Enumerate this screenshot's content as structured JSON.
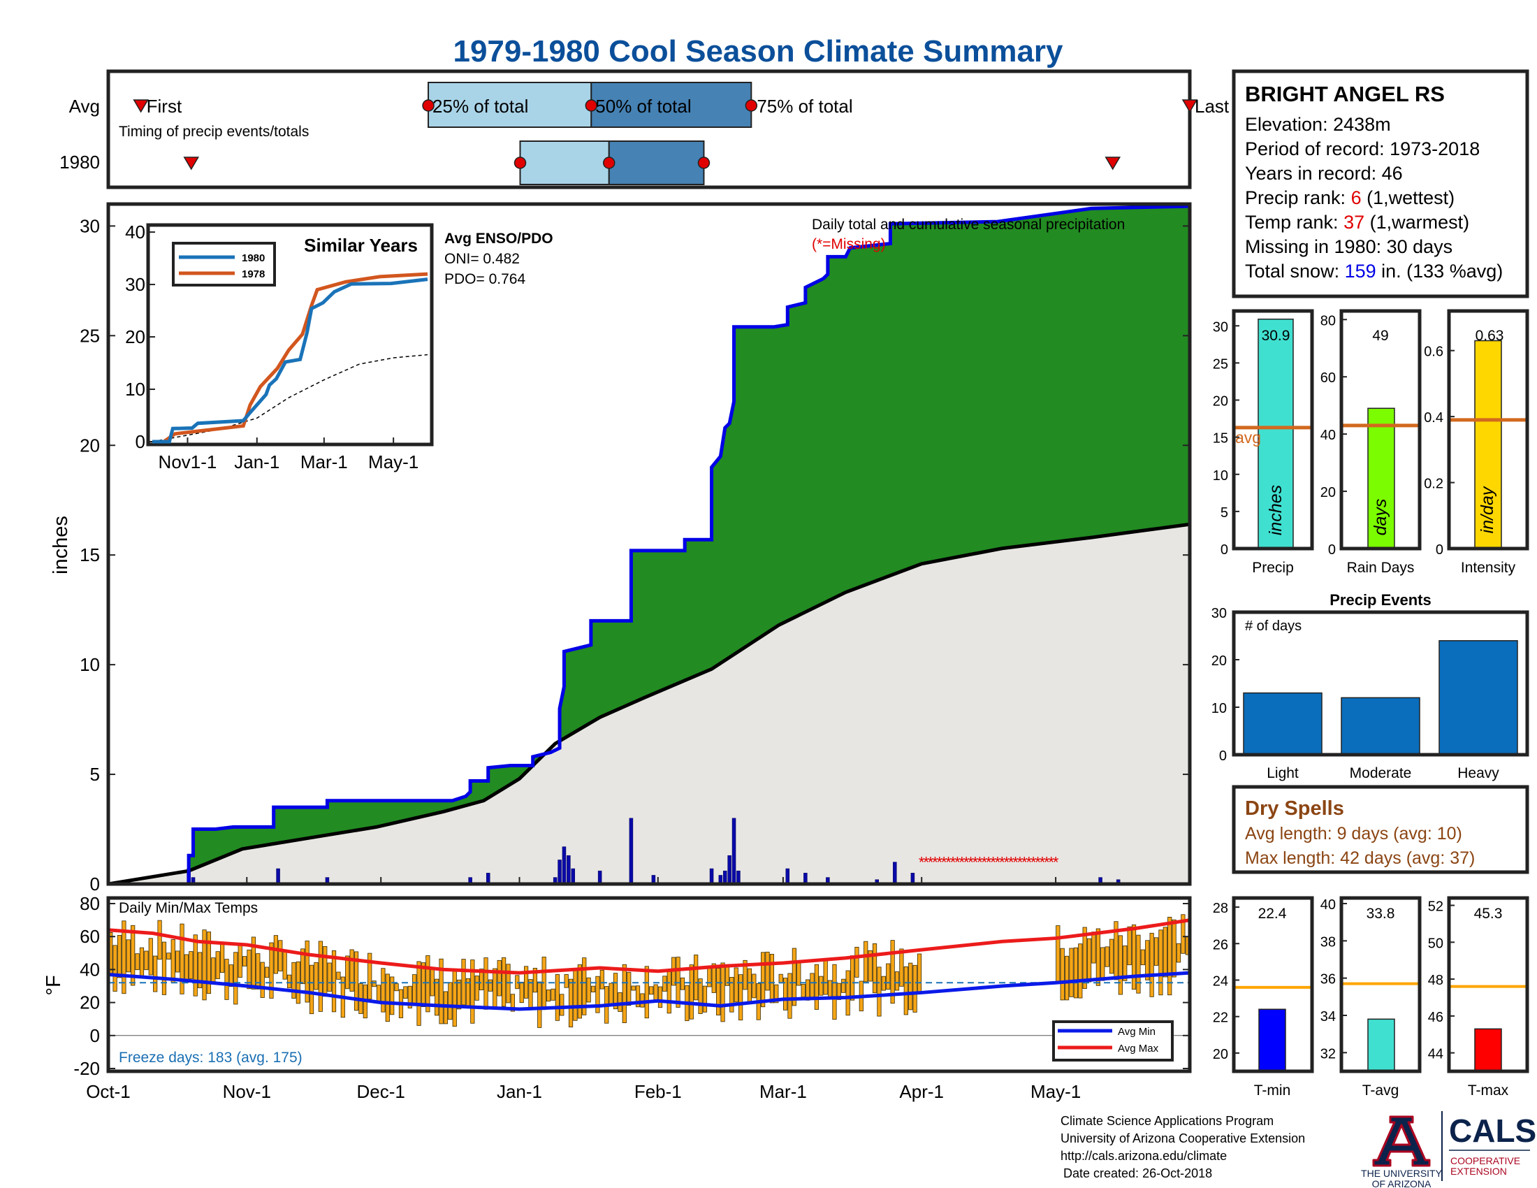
{
  "title": "1979-1980 Cool Season Climate Summary",
  "timing": {
    "row_labels": [
      "Avg",
      "1980"
    ],
    "first_label": "First",
    "last_label": "Last",
    "q25_label": "25% of total",
    "q50_label": "50% of total",
    "q75_label": "75% of total",
    "caption": "Timing of precip events/totals",
    "avg": {
      "first": 11,
      "q25": 108,
      "q50": 163,
      "q75": 217,
      "last": 365
    },
    "y1980": {
      "first": 28,
      "q25": 139,
      "q50": 169,
      "q75": 201,
      "last": 339
    }
  },
  "station": {
    "name": "BRIGHT ANGEL RS",
    "elevation": "Elevation: 2438m",
    "period": "Period of record: 1973-2018",
    "years": "Years in record: 46",
    "precip_rank_prefix": "Precip rank: ",
    "precip_rank_value": "6",
    "precip_rank_suffix": " (1,wettest)",
    "temp_rank_prefix": "Temp rank: ",
    "temp_rank_value": "37",
    "temp_rank_suffix": " (1,warmest)",
    "missing": "Missing in 1980: 30 days",
    "snow_prefix": "Total snow: ",
    "snow_value": "159",
    "snow_suffix": " in. (133 %avg)"
  },
  "main": {
    "ylabel": "inches",
    "x_ticks": [
      "Oct-1",
      "Nov-1",
      "Dec-1",
      "Jan-1",
      "Feb-1",
      "Mar-1",
      "Apr-1",
      "May-1"
    ],
    "legend_text": "Daily total and cumulative seasonal precipitation",
    "missing_text": "(*=Missing)",
    "enso_title": "Avg ENSO/PDO",
    "oni": "ONI= 0.482",
    "pdo": "PDO= 0.764"
  },
  "inset": {
    "title": "Similar Years",
    "legend": [
      "1980",
      "1978"
    ],
    "x_ticks": [
      "Nov1-1",
      "Jan-1",
      "Mar-1",
      "May-1"
    ]
  },
  "temps": {
    "label": "Daily Min/Max Temps",
    "ylabel": "°F",
    "freeze_text": "Freeze days: 183 (avg. 175)",
    "legend": [
      "Avg Min",
      "Avg Max"
    ]
  },
  "bar_panels": {
    "precip": {
      "label": "Precip",
      "unit": "inches",
      "value": "30.9",
      "avg_label": "avg"
    },
    "rain_days": {
      "label": "Rain Days",
      "unit": "days",
      "value": "49"
    },
    "intensity": {
      "label": "Intensity",
      "unit": "in/day",
      "value": "0.63"
    }
  },
  "events": {
    "title": "Precip Events",
    "ylabel": "# of days"
  },
  "dry": {
    "title": "Dry Spells",
    "avg_len": "Avg length: 9 days (avg: 10)",
    "max_len": "Max length: 42 days (avg: 37)"
  },
  "temp_panels": {
    "tmin": {
      "label": "T-min",
      "value": "22.4"
    },
    "tavg": {
      "label": "T-avg",
      "value": "33.8"
    },
    "tmax": {
      "label": "T-max",
      "value": "45.3"
    }
  },
  "footer": {
    "line1": "Climate Science Applications Program",
    "line2": "University of Arizona Cooperative Extension",
    "line3": "http://cals.arizona.edu/climate",
    "line4": "Date created: 26-Oct-2018",
    "ua_line1": "THE UNIVERSITY",
    "ua_line2": "OF ARIZONA",
    "cals": "CALS",
    "cals_sub1": "COOPERATIVE",
    "cals_sub2": "EXTENSION"
  },
  "colors": {
    "title": "#0b4f9a",
    "cumulative": "#0000e6",
    "surplus": "#228b22",
    "deficit": "#b8860b",
    "avg_area": "#e8e6e3",
    "q_light": "#a9d4e8",
    "q_dark": "#4682b4",
    "temp_bar": "#f5a516",
    "avg_min": "#0a1ae8",
    "avg_max": "#ec1b1b",
    "precip_bar": "#40e0d0",
    "rain_bar": "#7cfc00",
    "intensity_bar": "#ffd700",
    "avg_line": "#d2691e",
    "event_bar": "#0a6ebd",
    "dry_text": "#8b4513",
    "tmin_bar": "#0000ff",
    "tavg_bar": "#40e0d0",
    "tmax_bar": "#ff0000",
    "temp_avg_line": "#ffa500"
  },
  "chart_data": [
    {
      "type": "area",
      "name": "cumulative-precip",
      "x_unit": "day of season (Oct-1 = 0)",
      "ylabel": "inches",
      "ylim": [
        0,
        31
      ],
      "xlim": [
        0,
        242
      ],
      "x_ticks_days": [
        0,
        31,
        61,
        92,
        123,
        151,
        182,
        212
      ],
      "y_ticks": [
        0,
        5,
        10,
        15,
        20,
        25,
        30
      ],
      "cumulative_1980": [
        [
          0,
          0
        ],
        [
          18,
          0
        ],
        [
          18,
          1.3
        ],
        [
          19,
          1.3
        ],
        [
          19,
          2.5
        ],
        [
          24,
          2.5
        ],
        [
          28,
          2.6
        ],
        [
          37,
          2.6
        ],
        [
          37,
          3.5
        ],
        [
          49,
          3.5
        ],
        [
          49,
          3.8
        ],
        [
          77,
          3.8
        ],
        [
          80,
          4.0
        ],
        [
          81,
          4.2
        ],
        [
          81,
          4.7
        ],
        [
          85,
          4.7
        ],
        [
          85,
          5.3
        ],
        [
          90,
          5.4
        ],
        [
          95,
          5.4
        ],
        [
          95,
          5.8
        ],
        [
          99,
          6.0
        ],
        [
          101,
          6.2
        ],
        [
          101,
          8.0
        ],
        [
          102,
          9.0
        ],
        [
          102,
          10.6
        ],
        [
          106,
          10.8
        ],
        [
          108,
          10.9
        ],
        [
          108,
          12.0
        ],
        [
          117,
          12.0
        ],
        [
          117,
          15.2
        ],
        [
          129,
          15.2
        ],
        [
          129,
          15.7
        ],
        [
          135,
          15.7
        ],
        [
          135,
          19.0
        ],
        [
          137,
          19.5
        ],
        [
          138,
          20.8
        ],
        [
          139,
          21.0
        ],
        [
          140,
          22.0
        ],
        [
          140,
          25.4
        ],
        [
          149,
          25.4
        ],
        [
          152,
          25.5
        ],
        [
          152,
          26.3
        ],
        [
          156,
          26.5
        ],
        [
          156,
          27.2
        ],
        [
          160,
          27.6
        ],
        [
          161,
          27.8
        ],
        [
          161,
          28.6
        ],
        [
          165,
          28.6
        ],
        [
          166,
          29.0
        ],
        [
          175,
          29.2
        ],
        [
          175,
          30.1
        ],
        [
          199,
          30.2
        ],
        [
          220,
          30.8
        ],
        [
          242,
          30.9
        ]
      ],
      "average_cumulative": [
        [
          0,
          0
        ],
        [
          18,
          0.6
        ],
        [
          30,
          1.6
        ],
        [
          45,
          2.1
        ],
        [
          60,
          2.6
        ],
        [
          75,
          3.3
        ],
        [
          84,
          3.8
        ],
        [
          92,
          4.8
        ],
        [
          100,
          6.4
        ],
        [
          110,
          7.6
        ],
        [
          120,
          8.5
        ],
        [
          135,
          9.8
        ],
        [
          150,
          11.8
        ],
        [
          165,
          13.3
        ],
        [
          182,
          14.6
        ],
        [
          200,
          15.3
        ],
        [
          220,
          15.8
        ],
        [
          242,
          16.4
        ]
      ],
      "daily_precip": [
        [
          18,
          0.7
        ],
        [
          19,
          0.3
        ],
        [
          38,
          0.7
        ],
        [
          49,
          0.3
        ],
        [
          81,
          0.3
        ],
        [
          85,
          0.5
        ],
        [
          100,
          0.3
        ],
        [
          101,
          1.1
        ],
        [
          102,
          1.7
        ],
        [
          103,
          1.3
        ],
        [
          104,
          0.7
        ],
        [
          110,
          0.6
        ],
        [
          117,
          3.0
        ],
        [
          122,
          0.4
        ],
        [
          135,
          0.7
        ],
        [
          137,
          0.4
        ],
        [
          138,
          0.6
        ],
        [
          139,
          1.3
        ],
        [
          140,
          3.0
        ],
        [
          141,
          0.6
        ],
        [
          152,
          0.7
        ],
        [
          156,
          0.5
        ],
        [
          161,
          0.3
        ],
        [
          172,
          0.2
        ],
        [
          176,
          1.0
        ],
        [
          180,
          0.5
        ],
        [
          222,
          0.3
        ],
        [
          226,
          0.2
        ]
      ],
      "missing_days": [
        182,
        212
      ]
    },
    {
      "type": "line",
      "name": "similar-years",
      "title": "Similar Years",
      "ylim": [
        0,
        40
      ],
      "y_ticks": [
        0,
        10,
        20,
        30,
        40
      ],
      "x_ticks": [
        "Nov1-1",
        "Jan-1",
        "Mar-1",
        "May-1"
      ],
      "x_ticks_days": [
        31,
        92,
        151,
        212
      ],
      "series": [
        {
          "name": "1980",
          "points": [
            [
              0,
              0
            ],
            [
              15,
              0
            ],
            [
              18,
              2.5
            ],
            [
              35,
              2.6
            ],
            [
              40,
              3.5
            ],
            [
              80,
              4.0
            ],
            [
              85,
              5.3
            ],
            [
              100,
              9.0
            ],
            [
              103,
              10.8
            ],
            [
              109,
              12.0
            ],
            [
              117,
              15.2
            ],
            [
              130,
              15.7
            ],
            [
              136,
              20.8
            ],
            [
              140,
              25.4
            ],
            [
              150,
              26.5
            ],
            [
              160,
              28.6
            ],
            [
              175,
              30.1
            ],
            [
              210,
              30.2
            ],
            [
              242,
              31.0
            ]
          ]
        },
        {
          "name": "1978",
          "points": [
            [
              0,
              0
            ],
            [
              10,
              0
            ],
            [
              20,
              1.5
            ],
            [
              40,
              2.0
            ],
            [
              80,
              3.0
            ],
            [
              86,
              7.0
            ],
            [
              95,
              10.5
            ],
            [
              110,
              14.0
            ],
            [
              120,
              17.5
            ],
            [
              132,
              20.5
            ],
            [
              140,
              26.0
            ],
            [
              145,
              29.0
            ],
            [
              170,
              30.5
            ],
            [
              200,
              31.5
            ],
            [
              242,
              32.0
            ]
          ]
        }
      ],
      "average": [
        [
          0,
          0
        ],
        [
          30,
          1.2
        ],
        [
          60,
          2.4
        ],
        [
          92,
          4.5
        ],
        [
          120,
          8.4
        ],
        [
          151,
          11.8
        ],
        [
          182,
          14.8
        ],
        [
          212,
          16.0
        ],
        [
          242,
          16.6
        ]
      ]
    },
    {
      "type": "bar",
      "name": "daily-temps",
      "title": "Daily Min/Max Temps",
      "ylabel": "°F",
      "ylim": [
        -20,
        80
      ],
      "y_ticks": [
        -20,
        0,
        20,
        40,
        60,
        80
      ],
      "freeze_line": 32,
      "avg_min_curve": [
        [
          0,
          37
        ],
        [
          15,
          34
        ],
        [
          31,
          30
        ],
        [
          45,
          26
        ],
        [
          61,
          20
        ],
        [
          75,
          18
        ],
        [
          92,
          16
        ],
        [
          110,
          18
        ],
        [
          123,
          21
        ],
        [
          137,
          18
        ],
        [
          151,
          22
        ],
        [
          165,
          23
        ],
        [
          182,
          26
        ],
        [
          200,
          30
        ],
        [
          212,
          32
        ],
        [
          230,
          36
        ],
        [
          242,
          38
        ]
      ],
      "avg_max_curve": [
        [
          0,
          64
        ],
        [
          10,
          62
        ],
        [
          20,
          57
        ],
        [
          31,
          55
        ],
        [
          45,
          49
        ],
        [
          61,
          44
        ],
        [
          75,
          40
        ],
        [
          92,
          38
        ],
        [
          110,
          41
        ],
        [
          123,
          39
        ],
        [
          137,
          42
        ],
        [
          151,
          44
        ],
        [
          165,
          47
        ],
        [
          182,
          52
        ],
        [
          200,
          57
        ],
        [
          212,
          59
        ],
        [
          230,
          65
        ],
        [
          242,
          70
        ]
      ]
    },
    {
      "type": "bar",
      "name": "season-totals",
      "categories": [
        "Precip",
        "Rain Days",
        "Intensity"
      ],
      "values": [
        30.9,
        49,
        0.63
      ],
      "averages": [
        16.3,
        43,
        0.39
      ],
      "ylims": [
        [
          0,
          32
        ],
        [
          0,
          83
        ],
        [
          0,
          0.72
        ]
      ]
    },
    {
      "type": "bar",
      "name": "precip-events",
      "title": "Precip Events",
      "ylabel": "# of days",
      "categories": [
        "Light",
        "Moderate",
        "Heavy"
      ],
      "values": [
        13,
        12,
        24
      ],
      "ylim": [
        0,
        30
      ]
    },
    {
      "type": "bar",
      "name": "season-temps",
      "categories": [
        "T-min",
        "T-avg",
        "T-max"
      ],
      "values": [
        22.4,
        33.8,
        45.3
      ],
      "averages": [
        23.6,
        35.7,
        47.6
      ],
      "ylims": [
        [
          19,
          28.5
        ],
        [
          31,
          40.3
        ],
        [
          43,
          52.4
        ]
      ]
    }
  ]
}
